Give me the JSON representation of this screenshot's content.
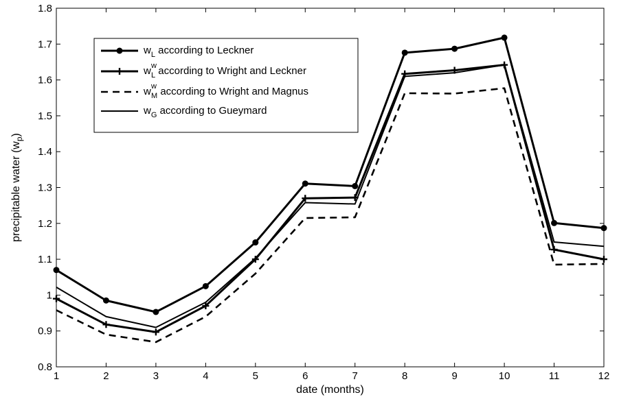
{
  "chart_data": {
    "type": "line",
    "x": [
      1,
      2,
      3,
      4,
      5,
      6,
      7,
      8,
      9,
      10,
      11,
      12
    ],
    "xlabel": "date (months)",
    "ylabel": {
      "base": "precipitable water (w",
      "sub": "p",
      "end": ")"
    },
    "xlim": [
      1,
      12
    ],
    "ylim": [
      0.8,
      1.8
    ],
    "xticks": [
      1,
      2,
      3,
      4,
      5,
      6,
      7,
      8,
      9,
      10,
      11,
      12
    ],
    "yticks": [
      0.8,
      0.9,
      1,
      1.1,
      1.2,
      1.3,
      1.4,
      1.5,
      1.6,
      1.7,
      1.8
    ],
    "ytick_labels": [
      "0.8",
      "0.9",
      "1",
      "1.1",
      "1.2",
      "1.3",
      "1.4",
      "1.5",
      "1.6",
      "1.7",
      "1.8"
    ],
    "grid": false,
    "legend_position": "top-left",
    "series": [
      {
        "id": "leckner",
        "label": {
          "base": "w",
          "sub": "L",
          "sup": "",
          "text": " according to Leckner"
        },
        "style": "solid-dot",
        "values": [
          1.07,
          0.985,
          0.953,
          1.025,
          1.147,
          1.311,
          1.304,
          1.676,
          1.687,
          1.718,
          1.201,
          1.187
        ]
      },
      {
        "id": "wright-leckner",
        "label": {
          "base": "w",
          "sub": "L",
          "sup": "w",
          "text": " according to Wright and Leckner"
        },
        "style": "solid-plus",
        "values": [
          0.99,
          0.918,
          0.897,
          0.97,
          1.1,
          1.27,
          1.272,
          1.617,
          1.627,
          1.642,
          1.127,
          1.1
        ]
      },
      {
        "id": "wright-magnus",
        "label": {
          "base": "w",
          "sub": "M",
          "sup": "w",
          "text": " according to Wright and Magnus"
        },
        "style": "dashed",
        "values": [
          0.958,
          0.89,
          0.869,
          0.94,
          1.06,
          1.215,
          1.217,
          1.563,
          1.562,
          1.577,
          1.085,
          1.087
        ]
      },
      {
        "id": "gueymard",
        "label": {
          "base": "w",
          "sub": "G",
          "sup": "",
          "text": " according to Gueymard"
        },
        "style": "solid",
        "values": [
          1.022,
          0.94,
          0.91,
          0.98,
          1.103,
          1.258,
          1.254,
          1.61,
          1.62,
          1.642,
          1.148,
          1.136
        ]
      }
    ]
  },
  "colors": {
    "line": "#000000",
    "background": "#ffffff"
  }
}
